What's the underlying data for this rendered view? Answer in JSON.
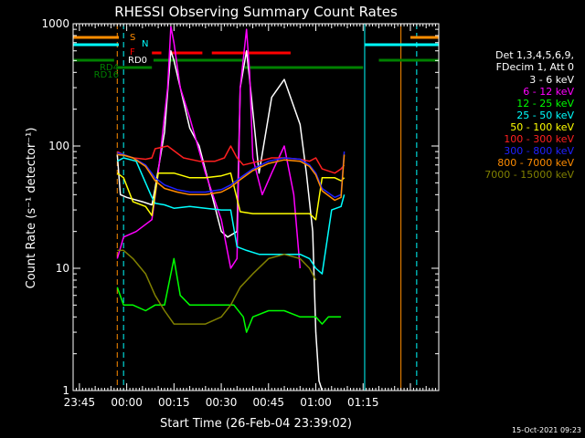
{
  "chart_data": {
    "type": "line",
    "title": "RHESSI Observing Summary Count Rates",
    "xlabel": "Start Time (26-Feb-04 23:39:02)",
    "ylabel": "Count Rate (s⁻¹ detector⁻¹)",
    "yscale": "log",
    "ylim": [
      1,
      1000
    ],
    "xlim_minutes": [
      -17,
      99
    ],
    "x_tick_labels": [
      {
        "label": "23:45",
        "minute": -15
      },
      {
        "label": "00:00",
        "minute": 0
      },
      {
        "label": "00:15",
        "minute": 15
      },
      {
        "label": "00:30",
        "minute": 30
      },
      {
        "label": "00:45",
        "minute": 45
      },
      {
        "label": "01:00",
        "minute": 60
      },
      {
        "label": "01:15",
        "minute": 75
      }
    ],
    "y_tick_labels": [
      {
        "label": "1",
        "value": 1
      },
      {
        "label": "10",
        "value": 10
      },
      {
        "label": "100",
        "value": 100
      },
      {
        "label": "1000",
        "value": 1000
      }
    ],
    "legend_placement": "right",
    "legend_header": [
      "Det 1,3,4,5,6,9,",
      "FDecim 1, Att 0"
    ],
    "timestamp": "15-Oct-2021 09:23",
    "flag_labels": [
      "S",
      "N",
      "F",
      "RD0",
      "RD4",
      "RD16"
    ],
    "series": [
      {
        "name": "3 - 6 keV",
        "color": "#ffffff",
        "x": [
          -3,
          -2,
          0,
          5,
          8,
          9,
          12,
          14,
          15,
          17,
          20,
          23,
          27,
          30,
          32,
          35,
          36,
          38,
          39,
          42,
          46,
          50,
          55,
          57,
          59,
          60,
          61,
          62
        ],
        "values": [
          85,
          40,
          38,
          35,
          33,
          45,
          130,
          600,
          500,
          300,
          140,
          100,
          40,
          20,
          18,
          20,
          300,
          600,
          350,
          60,
          250,
          350,
          150,
          60,
          20,
          3,
          1.2,
          1
        ]
      },
      {
        "name": "6 - 12 keV",
        "color": "#ff00ff",
        "x": [
          -3,
          -1,
          3,
          8,
          10,
          13,
          14,
          15,
          17,
          20,
          25,
          30,
          33,
          35,
          36,
          38,
          39,
          40,
          43,
          46,
          50,
          53,
          55
        ],
        "values": [
          12,
          18,
          20,
          25,
          60,
          300,
          950,
          700,
          300,
          170,
          60,
          25,
          10,
          12,
          300,
          900,
          400,
          80,
          40,
          60,
          100,
          40,
          10
        ]
      },
      {
        "name": "12 - 25 keV",
        "color": "#00ff00",
        "x": [
          -3,
          -1,
          2,
          6,
          9,
          12,
          15,
          17,
          20,
          25,
          30,
          34,
          37,
          38,
          40,
          45,
          50,
          55,
          58,
          60,
          62,
          64,
          66,
          68
        ],
        "values": [
          7,
          5,
          5,
          4.5,
          5,
          5,
          12,
          6,
          5,
          5,
          5,
          5,
          4,
          3,
          4,
          4.5,
          4.5,
          4,
          4,
          4,
          3.5,
          4,
          4,
          4
        ]
      },
      {
        "name": "25 - 50 keV",
        "color": "#00ffff",
        "x": [
          -3,
          -1,
          3,
          8,
          9,
          12,
          15,
          20,
          25,
          30,
          33,
          35,
          38,
          42,
          46,
          50,
          55,
          58,
          60,
          62,
          65,
          68,
          69
        ],
        "values": [
          75,
          80,
          75,
          38,
          34,
          33,
          31,
          32,
          31,
          30,
          30,
          15,
          14,
          13,
          13,
          13,
          13,
          12,
          10,
          9,
          30,
          32,
          40
        ]
      },
      {
        "name": "50 - 100 keV",
        "color": "#ffff00",
        "x": [
          -3,
          -1,
          2,
          6,
          8,
          10,
          15,
          20,
          25,
          30,
          33,
          36,
          40,
          45,
          50,
          55,
          58,
          60,
          62,
          66,
          68,
          69
        ],
        "values": [
          60,
          55,
          35,
          32,
          27,
          60,
          60,
          55,
          55,
          57,
          60,
          29,
          28,
          28,
          28,
          28,
          28,
          25,
          55,
          55,
          52,
          55
        ]
      },
      {
        "name": "100 - 300 keV",
        "color": "#ff2020",
        "x": [
          -3,
          -1,
          2,
          6,
          8,
          9,
          13,
          18,
          23,
          28,
          31,
          33,
          35,
          37,
          42,
          46,
          50,
          55,
          58,
          60,
          62,
          66,
          68,
          69
        ],
        "values": [
          90,
          85,
          80,
          78,
          80,
          95,
          100,
          80,
          75,
          75,
          80,
          100,
          80,
          70,
          75,
          80,
          80,
          78,
          75,
          80,
          65,
          60,
          65,
          70
        ]
      },
      {
        "name": "300 - 800 keV",
        "color": "#2020ff",
        "x": [
          -3,
          -1,
          2,
          6,
          9,
          12,
          16,
          20,
          25,
          30,
          33,
          36,
          40,
          45,
          50,
          55,
          58,
          60,
          62,
          66,
          68,
          69
        ],
        "values": [
          88,
          85,
          80,
          70,
          55,
          48,
          44,
          42,
          42,
          44,
          48,
          55,
          65,
          75,
          80,
          78,
          70,
          60,
          45,
          38,
          40,
          90
        ]
      },
      {
        "name": "800 - 7000 keV",
        "color": "#ff8c00",
        "x": [
          -3,
          -1,
          2,
          6,
          9,
          12,
          16,
          20,
          25,
          30,
          33,
          36,
          40,
          45,
          50,
          55,
          58,
          60,
          62,
          66,
          68,
          69
        ],
        "values": [
          85,
          84,
          80,
          68,
          52,
          45,
          42,
          40,
          40,
          42,
          46,
          53,
          63,
          72,
          77,
          75,
          68,
          58,
          43,
          36,
          38,
          85
        ]
      },
      {
        "name": "7000 - 15000 keV",
        "color": "#808000",
        "x": [
          -3,
          -1,
          2,
          6,
          9,
          12,
          15,
          20,
          25,
          30,
          33,
          36,
          40,
          45,
          50,
          55,
          58,
          60
        ],
        "values": [
          14,
          14,
          12,
          9,
          6,
          4.5,
          3.5,
          3.5,
          3.5,
          4,
          5,
          7,
          9,
          12,
          13,
          12,
          10,
          8
        ]
      }
    ],
    "flag_bars": [
      {
        "color": "#ff8c00",
        "level": 0,
        "segments": [
          [
            -17,
            -2.5
          ],
          [
            90,
            99
          ]
        ]
      },
      {
        "color": "#00ffff",
        "level": 1,
        "segments": [
          [
            -17,
            -2.5
          ],
          [
            75.5,
            99
          ]
        ]
      },
      {
        "color": "#ff0000",
        "level": 2,
        "segments": [
          [
            8,
            11
          ],
          [
            13.5,
            24
          ],
          [
            27,
            52
          ]
        ]
      },
      {
        "color": "#008000",
        "level": 3,
        "segments": [
          [
            -17,
            -4
          ],
          [
            8.5,
            37
          ],
          [
            80,
            99
          ]
        ]
      },
      {
        "color": "#008000",
        "level": 4,
        "segments": [
          [
            -3,
            8
          ],
          [
            37.5,
            75
          ]
        ]
      }
    ],
    "vertical_lines": [
      {
        "minute": -17,
        "color": "#00ffff",
        "style": "solid"
      },
      {
        "minute": -3,
        "color": "#ff8c00",
        "style": "dashed"
      },
      {
        "minute": -1,
        "color": "#00ffff",
        "style": "dashed"
      },
      {
        "minute": 75.5,
        "color": "#00ffff",
        "style": "solid"
      },
      {
        "minute": 87,
        "color": "#ff8c00",
        "style": "solid"
      },
      {
        "minute": 92,
        "color": "#00ffff",
        "style": "dashed"
      }
    ]
  }
}
